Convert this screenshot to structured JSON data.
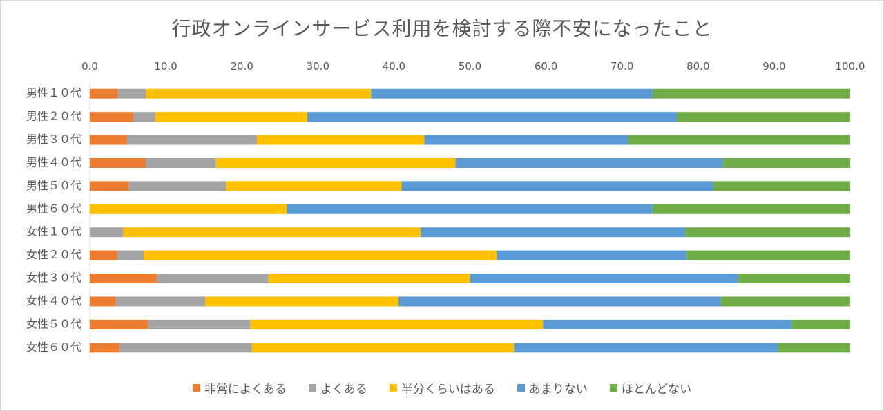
{
  "chart_data": {
    "type": "bar",
    "orientation": "horizontal",
    "stacked": true,
    "title": "行政オンラインサービス利用を検討する際不安になったこと",
    "xlim": [
      0,
      100
    ],
    "x_ticks": [
      "0.0",
      "10.0",
      "20.0",
      "30.0",
      "40.0",
      "50.0",
      "60.0",
      "70.0",
      "80.0",
      "90.0",
      "100.0"
    ],
    "x_axis_position": "top",
    "grid": false,
    "legend_position": "bottom",
    "categories": [
      "男性１０代",
      "男性２０代",
      "男性３０代",
      "男性４０代",
      "男性５０代",
      "男性６０代",
      "女性１０代",
      "女性２０代",
      "女性３０代",
      "女性４０代",
      "女性５０代",
      "女性６０代"
    ],
    "series": [
      {
        "name": "非常によくある",
        "color": "#ED7D31",
        "values": [
          3.7,
          5.7,
          4.9,
          7.4,
          5.1,
          0.0,
          0.0,
          3.6,
          8.8,
          3.4,
          7.7,
          3.9
        ]
      },
      {
        "name": "よくある",
        "color": "#A5A5A5",
        "values": [
          3.7,
          2.9,
          17.1,
          9.2,
          12.8,
          0.0,
          4.4,
          3.5,
          14.7,
          11.8,
          13.4,
          17.4
        ]
      },
      {
        "name": "半分くらいはある",
        "color": "#FFC000",
        "values": [
          29.6,
          20.0,
          22.0,
          31.5,
          23.1,
          25.9,
          39.1,
          46.4,
          26.5,
          25.4,
          38.5,
          34.5
        ]
      },
      {
        "name": "あまりない",
        "color": "#5B9BD5",
        "values": [
          37.0,
          48.6,
          26.8,
          35.2,
          41.0,
          48.1,
          34.8,
          25.0,
          35.3,
          42.4,
          32.7,
          34.7
        ]
      },
      {
        "name": "ほとんどない",
        "color": "#70AD47",
        "values": [
          26.0,
          22.8,
          29.2,
          16.7,
          18.0,
          26.0,
          21.7,
          21.5,
          14.7,
          17.0,
          7.7,
          9.5
        ]
      }
    ]
  }
}
